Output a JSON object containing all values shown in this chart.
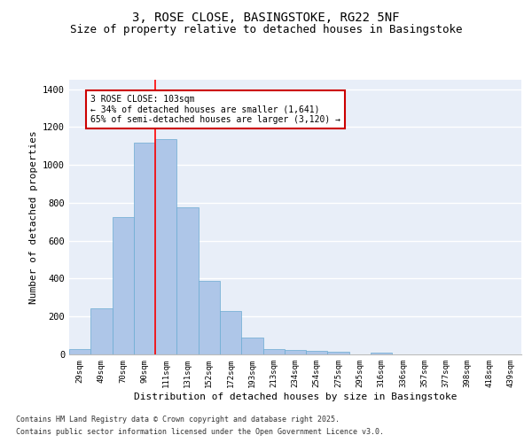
{
  "title1": "3, ROSE CLOSE, BASINGSTOKE, RG22 5NF",
  "title2": "Size of property relative to detached houses in Basingstoke",
  "xlabel": "Distribution of detached houses by size in Basingstoke",
  "ylabel": "Number of detached properties",
  "categories": [
    "29sqm",
    "49sqm",
    "70sqm",
    "90sqm",
    "111sqm",
    "131sqm",
    "152sqm",
    "172sqm",
    "193sqm",
    "213sqm",
    "234sqm",
    "254sqm",
    "275sqm",
    "295sqm",
    "316sqm",
    "336sqm",
    "357sqm",
    "377sqm",
    "398sqm",
    "418sqm",
    "439sqm"
  ],
  "values": [
    30,
    245,
    725,
    1120,
    1135,
    775,
    390,
    230,
    90,
    30,
    22,
    18,
    15,
    0,
    8,
    0,
    0,
    0,
    0,
    0,
    0
  ],
  "bar_color": "#aec6e8",
  "bar_edge_color": "#6aabd2",
  "redline_x": 3.5,
  "annotation_title": "3 ROSE CLOSE: 103sqm",
  "annotation_line1": "← 34% of detached houses are smaller (1,641)",
  "annotation_line2": "65% of semi-detached houses are larger (3,120) →",
  "ylim": [
    0,
    1450
  ],
  "yticks": [
    0,
    200,
    400,
    600,
    800,
    1000,
    1200,
    1400
  ],
  "background_color": "#e8eef8",
  "grid_color": "#ffffff",
  "footnote1": "Contains HM Land Registry data © Crown copyright and database right 2025.",
  "footnote2": "Contains public sector information licensed under the Open Government Licence v3.0.",
  "title1_fontsize": 10,
  "title2_fontsize": 9,
  "xlabel_fontsize": 8,
  "ylabel_fontsize": 8,
  "annotation_box_color": "#ffffff",
  "annotation_box_edge": "#cc0000",
  "footnote_fontsize": 6
}
